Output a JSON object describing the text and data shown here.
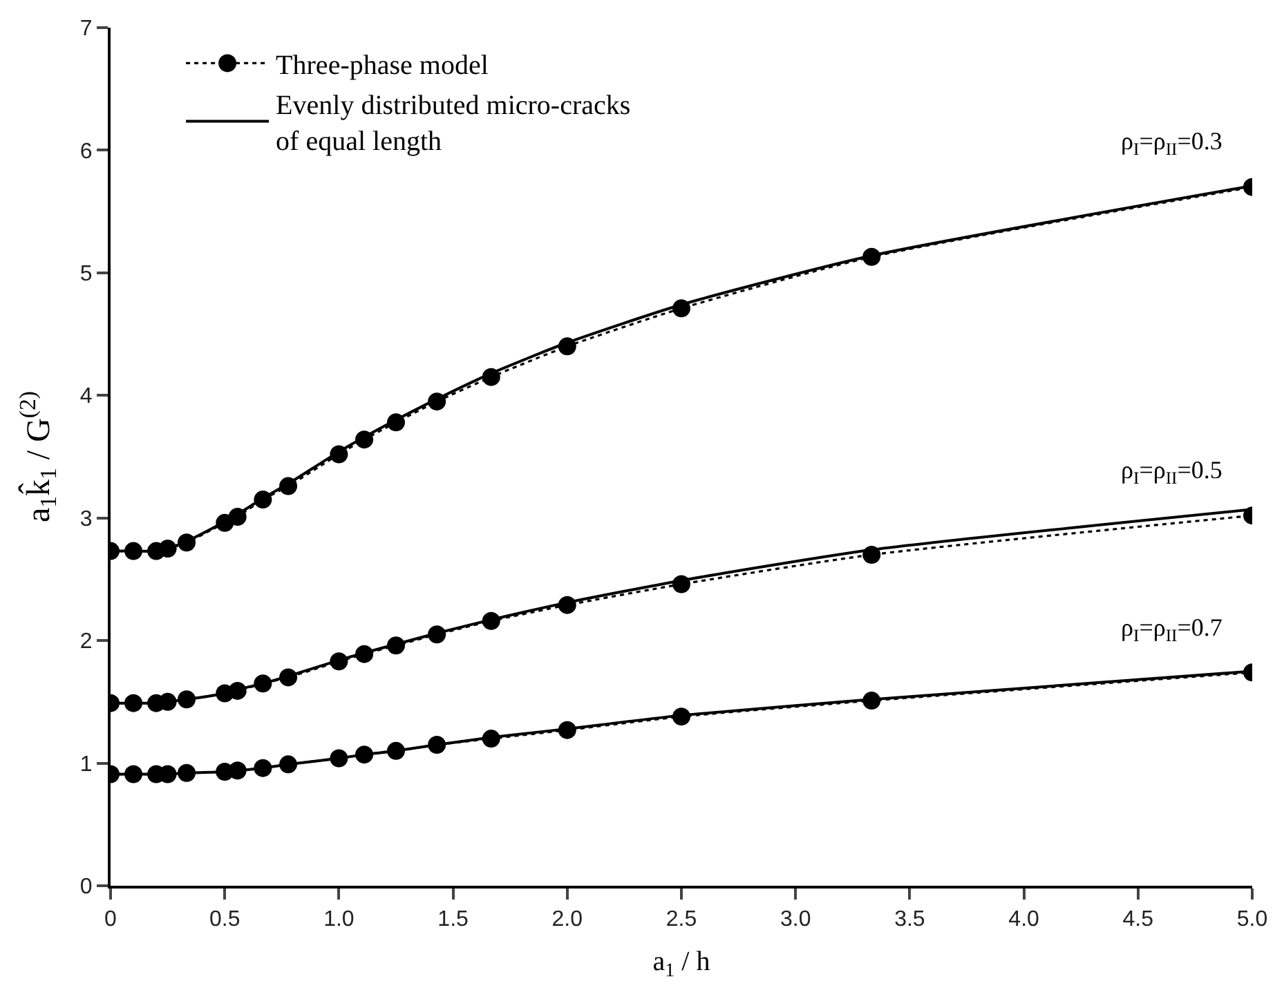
{
  "chart_data": {
    "type": "line",
    "xlabel": "a$_{1}$ / h",
    "ylabel": "a$_{1}$k̂$_{1}$ / G$^{(2)}$",
    "x": [
      0,
      0.1,
      0.2,
      0.25,
      0.333,
      0.5,
      0.556,
      0.667,
      0.778,
      1.0,
      1.111,
      1.25,
      1.429,
      1.667,
      2.0,
      2.5,
      3.333,
      5.0
    ],
    "series": [
      {
        "name": "Three-phase model",
        "color": "#000000",
        "marker": "circle",
        "line_style": "dotted",
        "values": [
          2.73,
          2.73,
          2.73,
          2.75,
          2.8,
          2.96,
          3.01,
          3.15,
          3.26,
          3.52,
          3.64,
          3.78,
          3.95,
          4.15,
          4.4,
          4.71,
          5.13,
          5.7
        ]
      },
      {
        "color": "#000000",
        "marker": "circle",
        "line_style": "dotted",
        "values": [
          1.49,
          1.49,
          1.49,
          1.5,
          1.52,
          1.57,
          1.59,
          1.65,
          1.7,
          1.83,
          1.89,
          1.96,
          2.05,
          2.16,
          2.29,
          2.46,
          2.7,
          3.02
        ]
      },
      {
        "color": "#000000",
        "marker": "circle",
        "line_style": "dotted",
        "values": [
          0.91,
          0.91,
          0.91,
          0.91,
          0.92,
          0.93,
          0.94,
          0.96,
          0.99,
          1.04,
          1.07,
          1.1,
          1.15,
          1.2,
          1.27,
          1.38,
          1.51,
          1.74
        ]
      },
      {
        "name": "Evenly distributed micro-cracks\nof equal length",
        "color": "#000000",
        "marker": "none",
        "line_style": "solid",
        "values": [
          2.73,
          2.73,
          2.73,
          2.75,
          2.81,
          2.97,
          3.03,
          3.16,
          3.28,
          3.54,
          3.66,
          3.8,
          3.97,
          4.18,
          4.43,
          4.74,
          5.14,
          5.71
        ]
      },
      {
        "color": "#000000",
        "marker": "none",
        "line_style": "solid",
        "values": [
          1.49,
          1.49,
          1.49,
          1.5,
          1.52,
          1.57,
          1.6,
          1.65,
          1.71,
          1.84,
          1.9,
          1.97,
          2.06,
          2.17,
          2.31,
          2.49,
          2.74,
          3.07
        ]
      },
      {
        "color": "#000000",
        "marker": "none",
        "line_style": "solid",
        "values": [
          0.91,
          0.91,
          0.91,
          0.91,
          0.92,
          0.93,
          0.94,
          0.96,
          0.99,
          1.04,
          1.07,
          1.1,
          1.15,
          1.21,
          1.28,
          1.39,
          1.52,
          1.75
        ]
      }
    ],
    "annotations": [
      "ρ$_{I}$=ρ$_{II}$=0.3",
      "ρ$_{I}$=ρ$_{II}$=0.5",
      "ρ$_{I}$=ρ$_{II}$=0.7"
    ],
    "xlim": [
      0,
      5
    ],
    "ylim": [
      0,
      7
    ],
    "xticks": [
      0,
      0.5,
      {
        "value": 1,
        "label": "1.0"
      },
      1.5,
      {
        "value": 2,
        "label": "2.0"
      },
      2.5,
      {
        "value": 3,
        "label": "3.0"
      },
      3.5,
      {
        "value": 4,
        "label": "4.0"
      },
      4.5,
      {
        "value": 5,
        "label": "5.0"
      }
    ],
    "yticks": [
      0,
      1,
      2,
      3,
      4,
      5,
      6,
      7
    ],
    "legend": "top left"
  }
}
